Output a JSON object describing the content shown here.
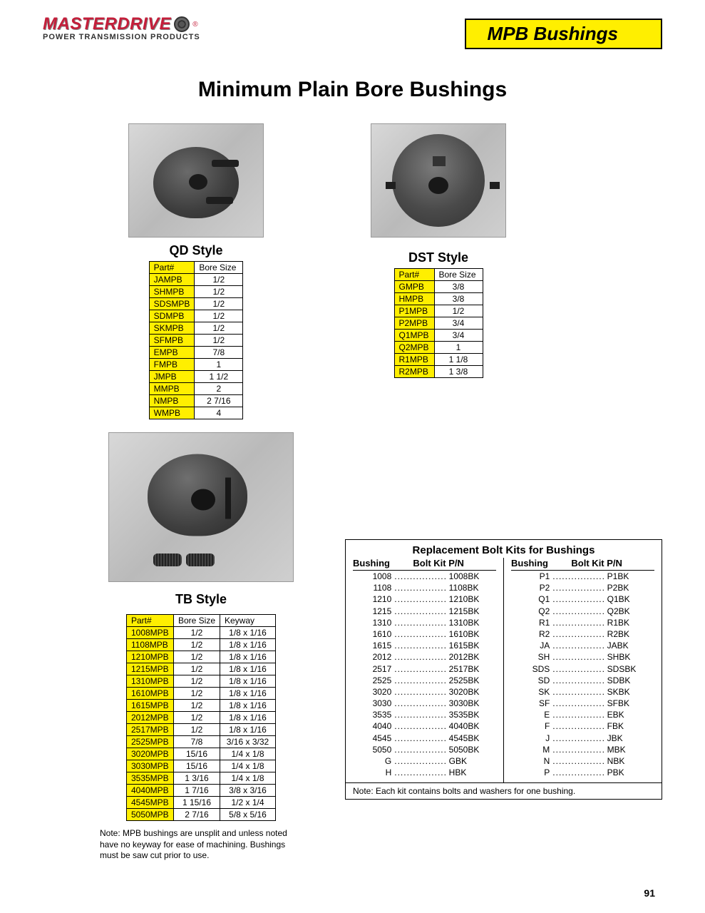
{
  "brand": {
    "name": "MASTERDRIVE",
    "reg": "®",
    "tagline": "POWER TRANSMISSION PRODUCTS"
  },
  "header_title": "MPB Bushings",
  "main_title": "Minimum Plain Bore Bushings",
  "qd": {
    "title": "QD Style",
    "cols": [
      "Part#",
      "Bore Size"
    ],
    "rows": [
      [
        "JAMPB",
        "1/2"
      ],
      [
        "SHMPB",
        "1/2"
      ],
      [
        "SDSMPB",
        "1/2"
      ],
      [
        "SDMPB",
        "1/2"
      ],
      [
        "SKMPB",
        "1/2"
      ],
      [
        "SFMPB",
        "1/2"
      ],
      [
        "EMPB",
        "7/8"
      ],
      [
        "FMPB",
        "1"
      ],
      [
        "JMPB",
        "1 1/2"
      ],
      [
        "MMPB",
        "2"
      ],
      [
        "NMPB",
        "2 7/16"
      ],
      [
        "WMPB",
        "4"
      ]
    ]
  },
  "dst": {
    "title": "DST Style",
    "cols": [
      "Part#",
      "Bore Size"
    ],
    "rows": [
      [
        "GMPB",
        "3/8"
      ],
      [
        "HMPB",
        "3/8"
      ],
      [
        "P1MPB",
        "1/2"
      ],
      [
        "P2MPB",
        "3/4"
      ],
      [
        "Q1MPB",
        "3/4"
      ],
      [
        "Q2MPB",
        "1"
      ],
      [
        "R1MPB",
        "1 1/8"
      ],
      [
        "R2MPB",
        "1 3/8"
      ]
    ]
  },
  "tb": {
    "title": "TB Style",
    "cols": [
      "Part#",
      "Bore Size",
      "Keyway"
    ],
    "rows": [
      [
        "1008MPB",
        "1/2",
        "1/8 x 1/16"
      ],
      [
        "1108MPB",
        "1/2",
        "1/8 x 1/16"
      ],
      [
        "1210MPB",
        "1/2",
        "1/8 x 1/16"
      ],
      [
        "1215MPB",
        "1/2",
        "1/8 x 1/16"
      ],
      [
        "1310MPB",
        "1/2",
        "1/8 x 1/16"
      ],
      [
        "1610MPB",
        "1/2",
        "1/8 x 1/16"
      ],
      [
        "1615MPB",
        "1/2",
        "1/8 x 1/16"
      ],
      [
        "2012MPB",
        "1/2",
        "1/8 x 1/16"
      ],
      [
        "2517MPB",
        "1/2",
        "1/8 x 1/16"
      ],
      [
        "2525MPB",
        "7/8",
        "3/16 x 3/32"
      ],
      [
        "3020MPB",
        "15/16",
        "1/4 x 1/8"
      ],
      [
        "3030MPB",
        "15/16",
        "1/4 x 1/8"
      ],
      [
        "3535MPB",
        "1 3/16",
        "1/4 x 1/8"
      ],
      [
        "4040MPB",
        "1 7/16",
        "3/8 x 3/16"
      ],
      [
        "4545MPB",
        "1 15/16",
        "1/2 x 1/4"
      ],
      [
        "5050MPB",
        "2 7/16",
        "5/8 x 5/16"
      ]
    ]
  },
  "kits": {
    "title": "Replacement Bolt Kits for Bushings",
    "col_heads": [
      "Bushing",
      "Bolt Kit P/N"
    ],
    "left": [
      [
        "1008",
        "1008BK"
      ],
      [
        "1108",
        "1108BK"
      ],
      [
        "1210",
        "1210BK"
      ],
      [
        "1215",
        "1215BK"
      ],
      [
        "1310",
        "1310BK"
      ],
      [
        "1610",
        "1610BK"
      ],
      [
        "1615",
        "1615BK"
      ],
      [
        "2012",
        "2012BK"
      ],
      [
        "2517",
        "2517BK"
      ],
      [
        "2525",
        "2525BK"
      ],
      [
        "3020",
        "3020BK"
      ],
      [
        "3030",
        "3030BK"
      ],
      [
        "3535",
        "3535BK"
      ],
      [
        "4040",
        "4040BK"
      ],
      [
        "4545",
        "4545BK"
      ],
      [
        "5050",
        "5050BK"
      ],
      [
        "G",
        "GBK"
      ],
      [
        "H",
        "HBK"
      ]
    ],
    "right": [
      [
        "P1",
        "P1BK"
      ],
      [
        "P2",
        "P2BK"
      ],
      [
        "Q1",
        "Q1BK"
      ],
      [
        "Q2",
        "Q2BK"
      ],
      [
        "R1",
        "R1BK"
      ],
      [
        "R2",
        "R2BK"
      ],
      [
        "JA",
        "JABK"
      ],
      [
        "SH",
        "SHBK"
      ],
      [
        "SDS",
        "SDSBK"
      ],
      [
        "SD",
        "SDBK"
      ],
      [
        "SK",
        "SKBK"
      ],
      [
        "SF",
        "SFBK"
      ],
      [
        "E",
        "EBK"
      ],
      [
        "F",
        "FBK"
      ],
      [
        "J",
        "JBK"
      ],
      [
        "M",
        "MBK"
      ],
      [
        "N",
        "NBK"
      ],
      [
        "P",
        "PBK"
      ]
    ],
    "note": "Note: Each kit contains bolts and washers for one bushing."
  },
  "footnote": "Note: MPB bushings are unsplit and unless noted have no keyway for ease of machining. Bushings must be saw cut prior to use.",
  "page_number": "91",
  "colors": {
    "yellow": "#ffef00",
    "red": "#c41e3a",
    "border": "#000000"
  }
}
